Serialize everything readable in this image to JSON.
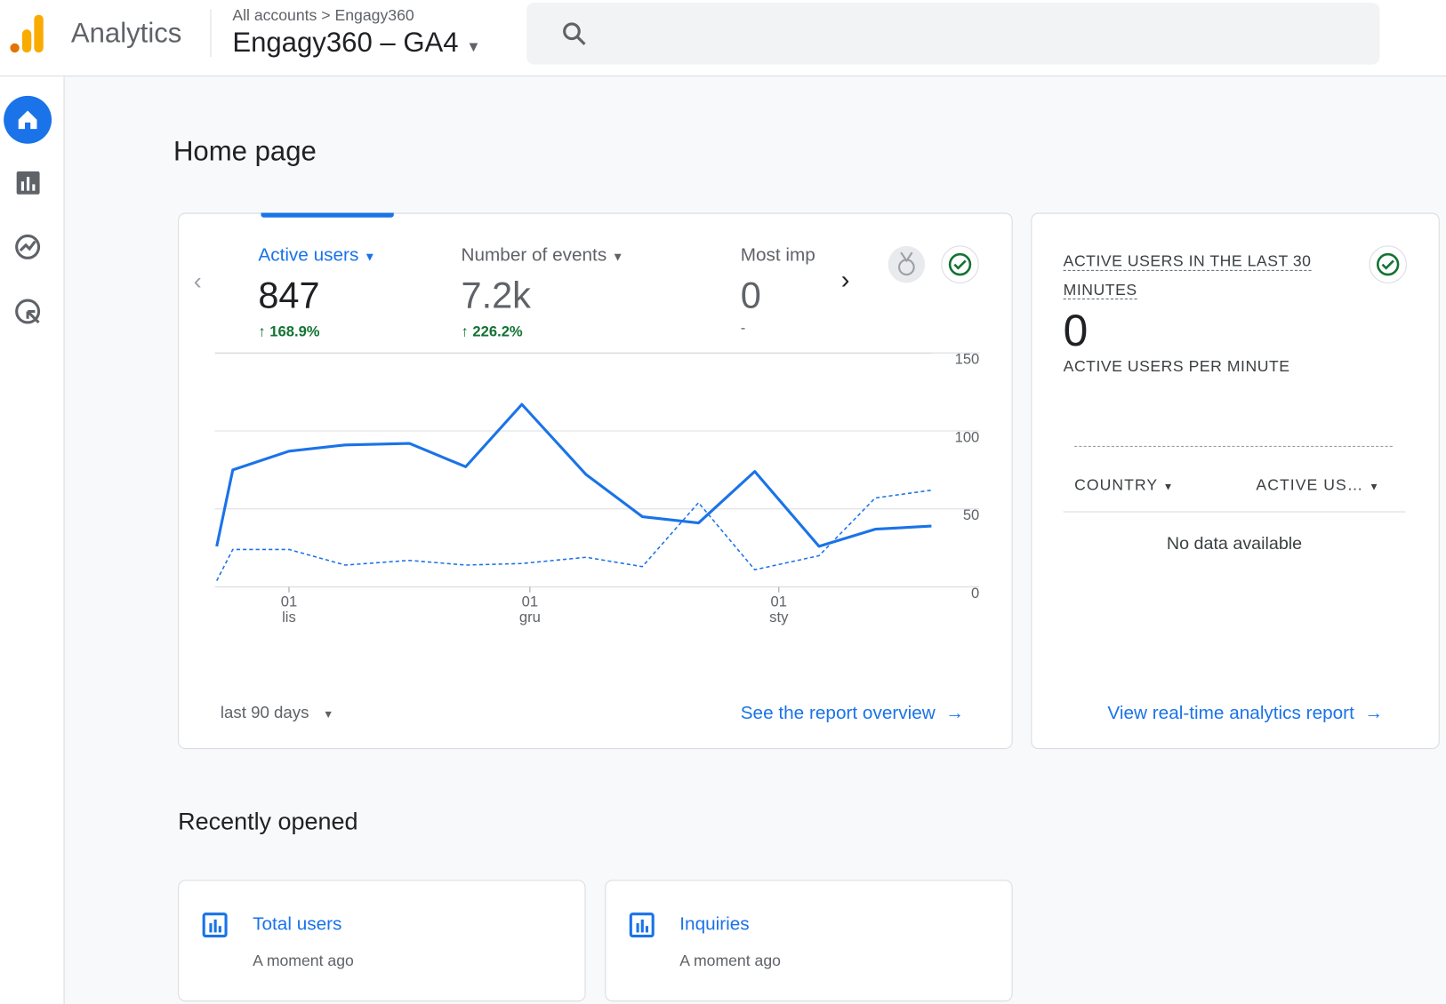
{
  "header": {
    "product": "Analytics",
    "breadcrumb": [
      "All accounts",
      "Engagy360"
    ],
    "property": "Engagy360 – GA4"
  },
  "page_title": "Home page",
  "overview_card": {
    "metrics": [
      {
        "name": "Active users",
        "value": "847",
        "change": "168.9%"
      },
      {
        "name": "Number of events",
        "value": "7.2k",
        "change": "226.2%"
      },
      {
        "name": "Most imp",
        "value": "0",
        "change": "-"
      }
    ],
    "date_range": "last 90 days",
    "link": "See the report overview"
  },
  "chart_data": {
    "type": "line",
    "x": [
      0,
      2,
      9,
      16,
      24,
      31,
      38,
      46,
      53,
      60,
      67,
      75,
      82,
      89
    ],
    "series": [
      {
        "color": "#1a73e8",
        "style": "solid",
        "values": [
          26,
          75,
          87,
          91,
          92,
          77,
          117,
          72,
          45,
          41,
          74,
          26,
          37,
          39
        ]
      },
      {
        "color": "#1a73e8",
        "style": "dashed",
        "values": [
          4,
          24,
          24,
          14,
          17,
          14,
          15,
          19,
          13,
          54,
          11,
          20,
          57,
          62
        ]
      }
    ],
    "xlim": [
      0,
      89
    ],
    "xticks": [
      {
        "value": 9,
        "label": "01\nlis"
      },
      {
        "value": 39,
        "label": "01\ngru"
      },
      {
        "value": 70,
        "label": "01\nsty"
      }
    ],
    "ylim": [
      0,
      150
    ],
    "yticks": [
      0,
      50,
      100,
      150
    ],
    "grid": true,
    "y_axis_side": "right"
  },
  "realtime_card": {
    "title": "ACTIVE USERS IN THE LAST 30 MINUTES",
    "value": "0",
    "subtitle": "ACTIVE USERS PER MINUTE",
    "columns": [
      "COUNTRY",
      "ACTIVE US…"
    ],
    "empty": "No data available",
    "link": "View real-time analytics report"
  },
  "recent": {
    "title": "Recently opened",
    "items": [
      {
        "name": "Total users",
        "time": "A moment ago"
      },
      {
        "name": "Inquiries",
        "time": "A moment ago"
      }
    ]
  }
}
